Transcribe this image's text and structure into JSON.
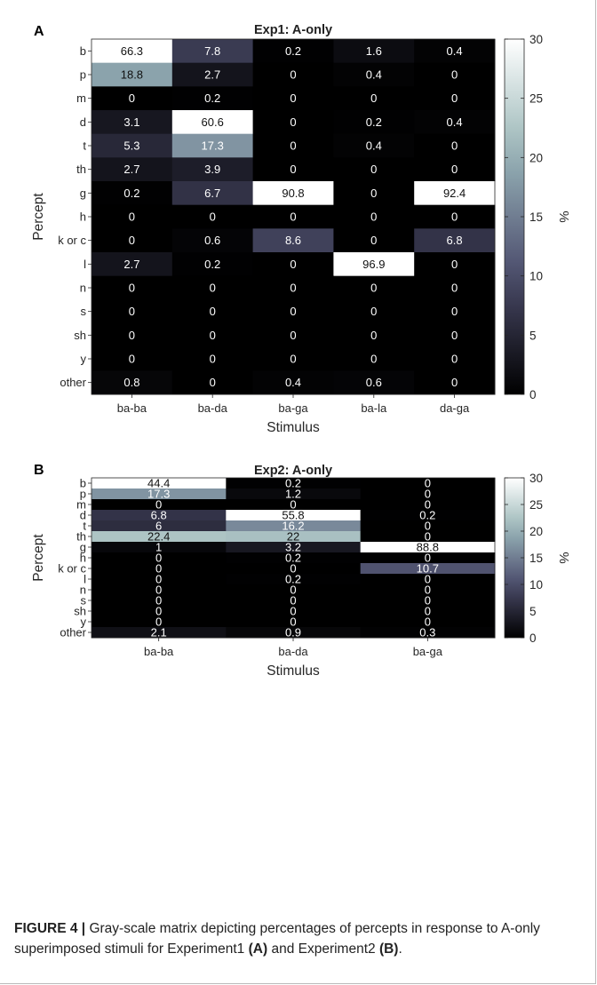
{
  "chart_data": [
    {
      "panel_label": "A",
      "type": "heatmap",
      "title": "Exp1: A-only",
      "xlabel": "Stimulus",
      "ylabel": "Percept",
      "colorbar_label": "%",
      "color_range": [
        0,
        30
      ],
      "colorbar_ticks": [
        "0",
        "5",
        "10",
        "15",
        "20",
        "25",
        "30"
      ],
      "colormap": "bone",
      "x_categories": [
        "ba-ba",
        "ba-da",
        "ba-ga",
        "ba-la",
        "da-ga"
      ],
      "y_categories": [
        "b",
        "p",
        "m",
        "d",
        "t",
        "th",
        "g",
        "h",
        "k or c",
        "l",
        "n",
        "s",
        "sh",
        "y",
        "other"
      ],
      "cells": [
        [
          "66.3",
          "7.8",
          "0.2",
          "1.6",
          "0.4"
        ],
        [
          "18.8",
          "2.7",
          "0",
          "0.4",
          "0"
        ],
        [
          "0",
          "0.2",
          "0",
          "0",
          "0"
        ],
        [
          "3.1",
          "60.6",
          "0",
          "0.2",
          "0.4"
        ],
        [
          "5.3",
          "17.3",
          "0",
          "0.4",
          "0"
        ],
        [
          "2.7",
          "3.9",
          "0",
          "0",
          "0"
        ],
        [
          "0.2",
          "6.7",
          "90.8",
          "0",
          "92.4"
        ],
        [
          "0",
          "0",
          "0",
          "0",
          "0"
        ],
        [
          "0",
          "0.6",
          "8.6",
          "0",
          "6.8"
        ],
        [
          "2.7",
          "0.2",
          "0",
          "96.9",
          "0"
        ],
        [
          "0",
          "0",
          "0",
          "0",
          "0"
        ],
        [
          "0",
          "0",
          "0",
          "0",
          "0"
        ],
        [
          "0",
          "0",
          "0",
          "0",
          "0"
        ],
        [
          "0",
          "0",
          "0",
          "0",
          "0"
        ],
        [
          "0.8",
          "0",
          "0.4",
          "0.6",
          "0"
        ]
      ]
    },
    {
      "panel_label": "B",
      "type": "heatmap",
      "title": "Exp2: A-only",
      "xlabel": "Stimulus",
      "ylabel": "Percept",
      "colorbar_label": "%",
      "color_range": [
        0,
        30
      ],
      "colorbar_ticks": [
        "0",
        "5",
        "10",
        "15",
        "20",
        "25",
        "30"
      ],
      "colormap": "bone",
      "x_categories": [
        "ba-ba",
        "ba-da",
        "ba-ga"
      ],
      "y_categories": [
        "b",
        "p",
        "m",
        "d",
        "t",
        "th",
        "g",
        "h",
        "k or c",
        "l",
        "n",
        "s",
        "sh",
        "y",
        "other"
      ],
      "cells": [
        [
          "44.4",
          "0.2",
          "0"
        ],
        [
          "17.3",
          "1.2",
          "0"
        ],
        [
          "0",
          "0",
          "0"
        ],
        [
          "6.8",
          "55.8",
          "0.2"
        ],
        [
          "6",
          "16.2",
          "0"
        ],
        [
          "22.4",
          "22",
          "0"
        ],
        [
          "1",
          "3.2",
          "88.8"
        ],
        [
          "0",
          "0.2",
          "0"
        ],
        [
          "0",
          "0",
          "10.7"
        ],
        [
          "0",
          "0.2",
          "0"
        ],
        [
          "0",
          "0",
          "0"
        ],
        [
          "0",
          "0",
          "0"
        ],
        [
          "0",
          "0",
          "0"
        ],
        [
          "0",
          "0",
          "0"
        ],
        [
          "2.1",
          "0.9",
          "0.3"
        ]
      ]
    }
  ],
  "caption": {
    "prefix": "FIGURE 4 | ",
    "text1": "Gray-scale matrix depicting percentages of percepts in response to A-only superimposed stimuli for Experiment1 ",
    "bold1": "(A)",
    "text2": " and Experiment2 ",
    "bold2": "(B)",
    "text3": "."
  }
}
